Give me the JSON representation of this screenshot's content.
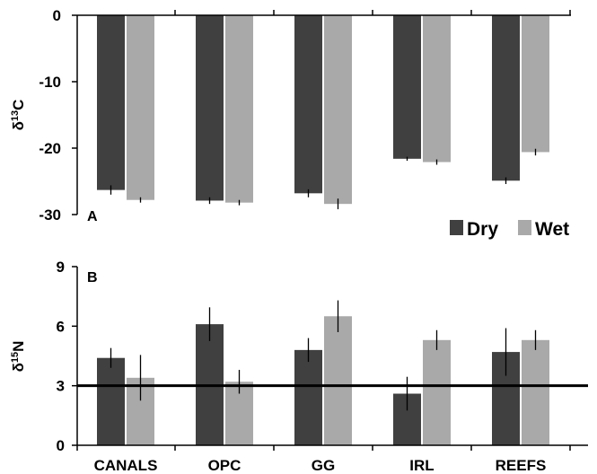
{
  "chart_data": [
    {
      "type": "bar",
      "panel_label": "A",
      "ylabel": "δ13C",
      "ylabel_main": "δ",
      "ylabel_sup": "13",
      "ylabel_tail": "C",
      "ylim": [
        -30,
        0
      ],
      "yticks": [
        "0",
        "-10",
        "-20",
        "-30"
      ],
      "ytick_values": [
        0,
        -10,
        -20,
        -30
      ],
      "categories": [
        "CANALS",
        "OPC",
        "GG",
        "IRL",
        "REEFS"
      ],
      "series": [
        {
          "name": "Dry",
          "color": "#404040",
          "values": [
            -26.3,
            -27.9,
            -26.8,
            -21.6,
            -24.9
          ],
          "errors": [
            0.7,
            0.5,
            0.6,
            0.3,
            0.5
          ]
        },
        {
          "name": "Wet",
          "color": "#a9a9a9",
          "values": [
            -27.8,
            -28.2,
            -28.4,
            -22.1,
            -20.6
          ],
          "errors": [
            0.4,
            0.4,
            0.8,
            0.4,
            0.5
          ]
        }
      ],
      "grid": false,
      "legend": "bottom-right"
    },
    {
      "type": "bar",
      "panel_label": "B",
      "ylabel": "δ15N",
      "ylabel_main": "δ",
      "ylabel_sup": "15",
      "ylabel_tail": "N",
      "ylim": [
        0,
        9
      ],
      "yticks": [
        "0",
        "3",
        "6",
        "9"
      ],
      "ytick_values": [
        0,
        3,
        6,
        9
      ],
      "categories": [
        "CANALS",
        "OPC",
        "GG",
        "IRL",
        "REEFS"
      ],
      "series": [
        {
          "name": "Dry",
          "color": "#404040",
          "values": [
            4.4,
            6.1,
            4.8,
            2.6,
            4.7
          ],
          "errors": [
            0.5,
            0.85,
            0.6,
            0.85,
            1.2
          ]
        },
        {
          "name": "Wet",
          "color": "#a9a9a9",
          "values": [
            3.4,
            3.2,
            6.5,
            5.3,
            5.3
          ],
          "errors": [
            1.15,
            0.6,
            0.8,
            0.5,
            0.5
          ]
        }
      ],
      "reference_line": 3,
      "grid": false
    }
  ],
  "legend": {
    "items": [
      {
        "label": "Dry",
        "color": "#404040"
      },
      {
        "label": "Wet",
        "color": "#a9a9a9"
      }
    ]
  }
}
